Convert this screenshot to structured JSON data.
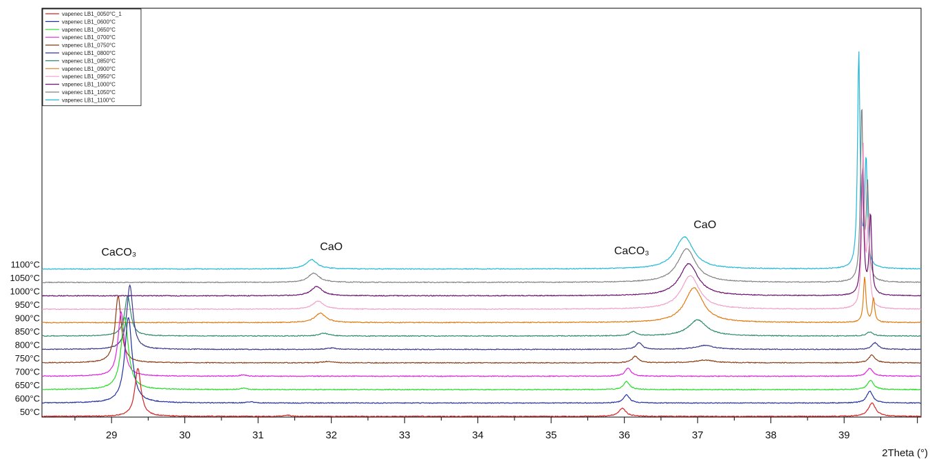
{
  "chart_data": {
    "type": "line",
    "title": "",
    "xlabel": "2Theta (°)",
    "ylabel": "",
    "xlim": [
      28.05,
      40.05
    ],
    "ylim": [
      0,
      1
    ],
    "grid": false,
    "legend_position": "top-left",
    "x_ticks": [
      29,
      30,
      31,
      32,
      33,
      34,
      35,
      36,
      37,
      38,
      39
    ],
    "offset_labels": [
      "1100°C",
      "1050°C",
      "1000°C",
      "950°C",
      "900°C",
      "850°C",
      "800°C",
      "750°C",
      "700°C",
      "650°C",
      "600°C",
      "50°C"
    ],
    "annotations": [
      {
        "text": "CaCO₃",
        "x": 29.1
      },
      {
        "text": "CaO",
        "x": 32.0
      },
      {
        "text": "CaCO₃",
        "x": 36.1
      },
      {
        "text": "CaO",
        "x": 37.1
      }
    ],
    "series": [
      {
        "name": "vapenec LB1_0050°C_1",
        "color": "#d62020",
        "offset_label": "50°C",
        "peaks": [
          [
            29.36,
            0.36,
            0.05
          ],
          [
            31.4,
            0.01,
            0.05
          ],
          [
            35.97,
            0.06,
            0.06
          ],
          [
            39.38,
            0.1,
            0.06
          ]
        ]
      },
      {
        "name": "vapenec LB1_0600°C",
        "color": "#1f2fa0",
        "offset_label": "600°C",
        "peaks": [
          [
            29.23,
            0.64,
            0.06
          ],
          [
            30.9,
            0.01,
            0.05
          ],
          [
            36.03,
            0.06,
            0.05
          ],
          [
            39.35,
            0.09,
            0.05
          ]
        ]
      },
      {
        "name": "vapenec LB1_0650°C",
        "color": "#22dd22",
        "offset_label": "650°C",
        "peaks": [
          [
            29.18,
            0.54,
            0.06
          ],
          [
            30.8,
            0.01,
            0.05
          ],
          [
            36.03,
            0.06,
            0.05
          ],
          [
            39.36,
            0.07,
            0.05
          ]
        ]
      },
      {
        "name": "vapenec LB1_0700°C",
        "color": "#e020e0",
        "offset_label": "700°C",
        "peaks": [
          [
            29.13,
            0.48,
            0.05
          ],
          [
            30.8,
            0.01,
            0.05
          ],
          [
            36.05,
            0.06,
            0.05
          ],
          [
            39.35,
            0.06,
            0.05
          ]
        ]
      },
      {
        "name": "vapenec LB1_0750°C",
        "color": "#8b3a12",
        "offset_label": "750°C",
        "peaks": [
          [
            29.09,
            0.5,
            0.05
          ],
          [
            31.95,
            0.01,
            0.08
          ],
          [
            36.15,
            0.05,
            0.05
          ],
          [
            37.1,
            0.02,
            0.15
          ],
          [
            39.38,
            0.06,
            0.05
          ]
        ]
      },
      {
        "name": "vapenec LB1_0800°C",
        "color": "#35358a",
        "offset_label": "800°C",
        "peaks": [
          [
            29.25,
            0.48,
            0.05
          ],
          [
            32.0,
            0.01,
            0.08
          ],
          [
            36.2,
            0.05,
            0.05
          ],
          [
            37.1,
            0.03,
            0.15
          ],
          [
            39.42,
            0.05,
            0.05
          ]
        ]
      },
      {
        "name": "vapenec LB1_0850°C",
        "color": "#2a8a6a",
        "offset_label": "850°C",
        "peaks": [
          [
            29.22,
            0.3,
            0.05
          ],
          [
            31.9,
            0.02,
            0.08
          ],
          [
            36.12,
            0.03,
            0.05
          ],
          [
            37.0,
            0.12,
            0.15
          ],
          [
            39.35,
            0.03,
            0.05
          ]
        ]
      },
      {
        "name": "vapenec LB1_0900°C",
        "color": "#e07a10",
        "offset_label": "900°C",
        "peaks": [
          [
            31.85,
            0.07,
            0.09
          ],
          [
            36.95,
            0.26,
            0.15
          ],
          [
            39.28,
            0.34,
            0.02
          ],
          [
            39.4,
            0.18,
            0.02
          ]
        ]
      },
      {
        "name": "vapenec LB1_0950°C",
        "color": "#f0a0c8",
        "offset_label": "950°C",
        "peaks": [
          [
            31.82,
            0.06,
            0.09
          ],
          [
            36.9,
            0.25,
            0.15
          ],
          [
            39.26,
            1.2,
            0.02
          ],
          [
            39.33,
            0.6,
            0.02
          ]
        ]
      },
      {
        "name": "vapenec LB1_1000°C",
        "color": "#6a1070",
        "offset_label": "1000°C",
        "peaks": [
          [
            31.8,
            0.07,
            0.09
          ],
          [
            36.88,
            0.24,
            0.15
          ],
          [
            39.25,
            0.95,
            0.02
          ],
          [
            39.36,
            0.6,
            0.02
          ]
        ]
      },
      {
        "name": "vapenec LB1_1050°C",
        "color": "#808080",
        "offset_label": "1050°C",
        "peaks": [
          [
            31.76,
            0.07,
            0.09
          ],
          [
            36.85,
            0.25,
            0.15
          ],
          [
            39.24,
            1.3,
            0.02
          ],
          [
            39.32,
            0.7,
            0.02
          ]
        ]
      },
      {
        "name": "vapenec LB1_1100°C",
        "color": "#20b8d8",
        "offset_label": "1100°C",
        "peaks": [
          [
            31.73,
            0.07,
            0.09
          ],
          [
            36.82,
            0.24,
            0.15
          ],
          [
            39.2,
            1.6,
            0.02
          ],
          [
            39.3,
            0.8,
            0.02
          ]
        ]
      }
    ]
  }
}
